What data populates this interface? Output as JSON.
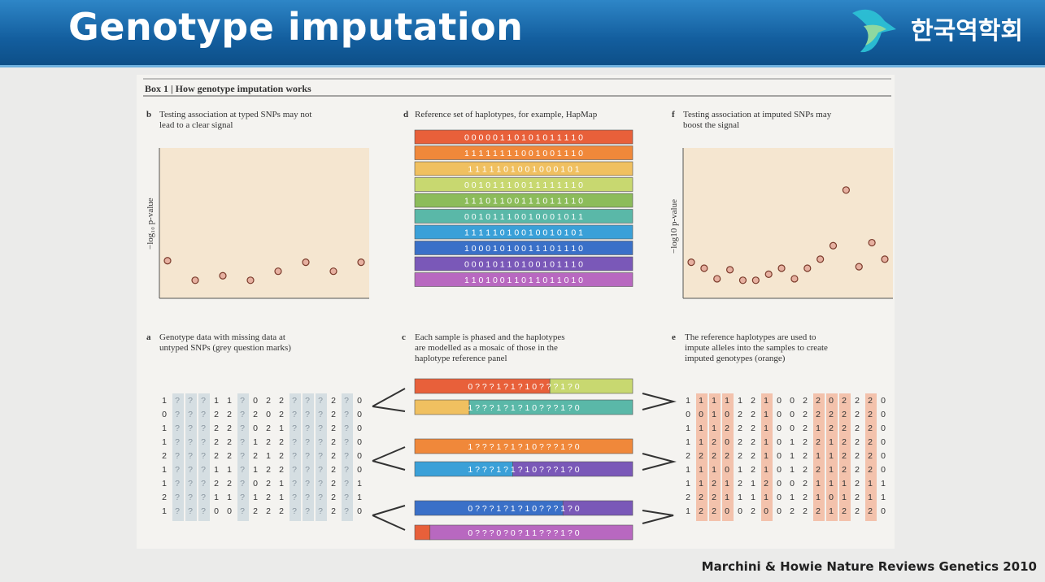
{
  "slide": {
    "title": "Genotype imputation",
    "logo_text": "한국역학회",
    "citation": "Marchini & Howie Nature Reviews Genetics 2010"
  },
  "box": {
    "header": "Box 1 | How genotype imputation works"
  },
  "panels": {
    "b": {
      "letter": "b",
      "caption": [
        "Testing association at typed SNPs may not",
        "lead to a clear signal"
      ],
      "ylabel": "−log₁₀ p-value"
    },
    "d": {
      "letter": "d",
      "caption": [
        "Reference set of haplotypes, for example, HapMap"
      ]
    },
    "f": {
      "letter": "f",
      "caption": [
        "Testing association at imputed SNPs may",
        "boost the signal"
      ],
      "ylabel": "−log10 p-value"
    },
    "a": {
      "letter": "a",
      "caption": [
        "Genotype data with missing data at",
        "untyped SNPs (grey question marks)"
      ]
    },
    "c": {
      "letter": "c",
      "caption": [
        "Each sample is phased and the haplotypes",
        "are modelled as a mosaic of those in the",
        "haplotype reference panel"
      ]
    },
    "e": {
      "letter": "e",
      "caption": [
        "The reference haplotypes are used to",
        "impute alleles into the samples to create",
        "imputed genotypes (orange)"
      ]
    }
  },
  "reference_haplotypes": {
    "colors": [
      "#e8603a",
      "#f0883a",
      "#f0c060",
      "#c8d870",
      "#8cbc5a",
      "#5ab8a8",
      "#3aa0d8",
      "#3a70c8",
      "#7a58b8",
      "#b868c0"
    ],
    "rows": [
      "0 0 0 0 0 1 1 0 1 0 1 0 1 1 1 1 0",
      "1 1 1 1 1 1 1 1 0 0 1 0 0 1 1 1 0",
      "1 1 1 1 1 0 1 0 0 1 0 0 0 1 0 1",
      "0 0 1 0 1 1 1 0 0 1 1 1 1 1 1 1 0",
      "1 1 1 0 1 1 0 0 1 1 1 0 1 1 1 1 0",
      "0 0 1 0 1 1 1 0 0 1 0 0 0 1 0 1 1",
      "1 1 1 1 1 0 1 0 0 1 0 0 1 0 1 0 1",
      "1 0 0 0 1 0 1 0 0 1 1 1 0 1 1 1 0",
      "0 0 0 1 0 1 1 0 1 0 0 1 0 1 1 1 0",
      "1 1 0 1 0 0 1 1 0 1 1 0 1 1 0 1 0"
    ]
  },
  "genotypes_missing": [
    "1 ? ? ? 1 1 ? 0 2 2 ? ? ? 2 ? 0",
    "0 ? ? ? 2 2 ? 2 0 2 ? ? ? 2 ? 0",
    "1 ? ? ? 2 2 ? 0 2 1 ? ? ? 2 ? 0",
    "1 ? ? ? 2 2 ? 1 2 2 ? ? ? 2 ? 0",
    "2 ? ? ? 2 2 ? 2 1 2 ? ? ? 2 ? 0",
    "1 ? ? ? 1 1 ? 1 2 2 ? ? ? 2 ? 0",
    "1 ? ? ? 2 2 ? 0 2 1 ? ? ? 2 ? 1",
    "2 ? ? ? 1 1 ? 1 2 1 ? ? ? 2 ? 1",
    "1 ? ? ? 0 0 ? 2 2 2 ? ? ? 2 ? 0"
  ],
  "genotypes_imputed": [
    "1 1 1 1 1 2 1 0 0 2 2 0 2 2 2 0",
    "0 0 1 0 2 2 1 0 0 2 2 2 2 2 2 0",
    "1 1 1 2 2 2 1 0 0 2 1 2 2 2 2 0",
    "1 1 2 0 2 2 1 0 1 2 2 1 2 2 2 0",
    "2 2 2 2 2 2 1 0 1 2 1 1 2 2 2 0",
    "1 1 1 0 1 2 1 0 1 2 2 1 2 2 2 0",
    "1 1 2 1 2 1 2 0 0 2 1 1 1 2 1 1",
    "2 2 2 1 1 1 1 0 1 2 1 0 1 2 1 1",
    "1 2 2 0 0 2 0 0 2 2 2 1 2 2 2 0"
  ],
  "mosaic_rows": [
    {
      "text": "0 ? ? ? 1 ? 1 ? 1 0 ? ? ? 1 ? 0"
    },
    {
      "text": "1 ? ? ? 1 ? 1 ? 1 0 ? ? ? 1 ? 0"
    },
    {
      "text": "1 ? ? ? 1 ? 1 ? 1 0 ? ? ? 1 ? 0"
    },
    {
      "text": "1 ? ? ? 1 ? 1 ? 1 0 ? ? ? 1 ? 0"
    },
    {
      "text": "0 ? ? ? 1 ? 1 ? 1 0 ? ? ? 1 ? 0"
    },
    {
      "text": "0 ? ? ? 0 ? 0 ? 1 1 ? ? ? 1 ? 0"
    }
  ],
  "plot_b": {
    "points_y": [
      0.25,
      0.12,
      0.15,
      0.12,
      0.18,
      0.24,
      0.18,
      0.24
    ]
  },
  "plot_f": {
    "points_y": [
      0.24,
      0.2,
      0.13,
      0.19,
      0.12,
      0.12,
      0.16,
      0.2,
      0.13,
      0.2,
      0.26,
      0.35,
      0.72,
      0.21,
      0.37,
      0.26
    ]
  }
}
